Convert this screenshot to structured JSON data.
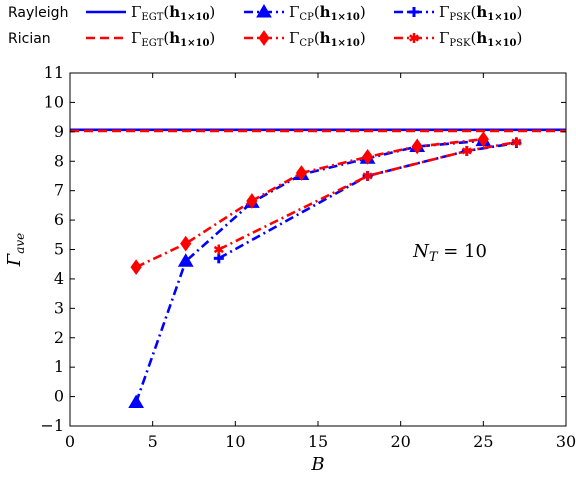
{
  "chart_data": {
    "type": "line",
    "xlabel": "B",
    "ylabel": "Γave",
    "xlim": [
      0,
      30
    ],
    "ylim": [
      -1,
      11
    ],
    "xticks": [
      0,
      5,
      10,
      15,
      20,
      25,
      30
    ],
    "yticks": [
      -1,
      0,
      1,
      2,
      3,
      4,
      5,
      6,
      7,
      8,
      9,
      10,
      11
    ],
    "grid": false,
    "legend_placement": "top",
    "annotation": "N_T = 10",
    "legend_groups": [
      "Rayleigh",
      "Rician"
    ],
    "series": [
      {
        "name": "Γ_EGT(h_1×10)",
        "group": "Rayleigh",
        "color": "#0000ff",
        "dash": "solid",
        "marker": "none",
        "x": [
          0,
          30
        ],
        "y": [
          9.07,
          9.07
        ]
      },
      {
        "name": "Γ_CP(h_1×10)",
        "group": "Rayleigh",
        "color": "#0000ff",
        "dash": "dashdot",
        "marker": "triangle",
        "x": [
          4,
          7,
          11,
          14,
          18,
          21,
          25
        ],
        "y": [
          -0.2,
          4.6,
          6.6,
          7.55,
          8.1,
          8.5,
          8.7
        ]
      },
      {
        "name": "Γ_PSK(h_1×10)",
        "group": "Rayleigh",
        "color": "#0000ff",
        "dash": "dashdot",
        "marker": "plus",
        "x": [
          9,
          18,
          24,
          27
        ],
        "y": [
          4.7,
          7.5,
          8.35,
          8.62
        ]
      },
      {
        "name": "Γ_EGT(h_1×10)",
        "group": "Rician",
        "color": "#ff0000",
        "dash": "dashed",
        "marker": "none",
        "x": [
          0,
          30
        ],
        "y": [
          9.03,
          9.03
        ]
      },
      {
        "name": "Γ_CP(h_1×10)",
        "group": "Rician",
        "color": "#ff0000",
        "dash": "dashdot",
        "marker": "diamond",
        "x": [
          4,
          7,
          11,
          14,
          18,
          21,
          25
        ],
        "y": [
          4.4,
          5.2,
          6.65,
          7.6,
          8.15,
          8.5,
          8.75
        ]
      },
      {
        "name": "Γ_PSK(h_1×10)",
        "group": "Rician",
        "color": "#ff0000",
        "dash": "dashdot",
        "marker": "asterisk",
        "x": [
          9,
          18,
          24,
          27
        ],
        "y": [
          5.0,
          7.5,
          8.35,
          8.65
        ]
      }
    ]
  }
}
